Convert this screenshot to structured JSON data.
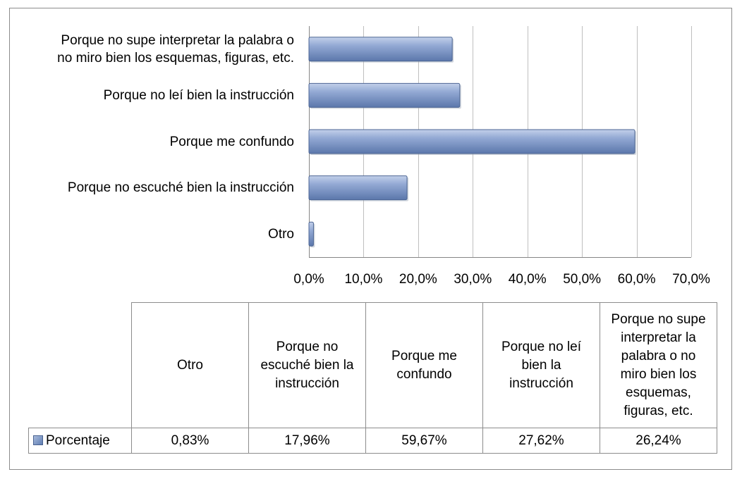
{
  "chart_data": {
    "type": "bar",
    "orientation": "horizontal",
    "categories": [
      "Porque no supe interpretar la palabra o\nno miro bien los esquemas, figuras, etc.",
      "Porque no leí bien la instrucción",
      "Porque me confundo",
      "Porque no escuché bien la instrucción",
      "Otro"
    ],
    "series": [
      {
        "name": "Porcentaje",
        "values": [
          26.24,
          27.62,
          59.67,
          17.96,
          0.83
        ]
      }
    ],
    "xlim": [
      0,
      70
    ],
    "x_ticks": [
      "0,0%",
      "10,0%",
      "20,0%",
      "30,0%",
      "40,0%",
      "50,0%",
      "60,0%",
      "70,0%"
    ],
    "grid": true,
    "bar_color": "#7f97c7",
    "data_table": {
      "headers": [
        "Otro",
        "Porque no\nescuché bien la\ninstrucción",
        "Porque me\nconfundo",
        "Porque no leí\nbien la\ninstrucción",
        "Porque no supe\ninterpretar la\npalabra o no\nmiro bien los\nesquemas,\nfiguras, etc."
      ],
      "legend_label": "Porcentaje",
      "values": [
        "0,83%",
        "17,96%",
        "59,67%",
        "27,62%",
        "26,24%"
      ]
    }
  }
}
